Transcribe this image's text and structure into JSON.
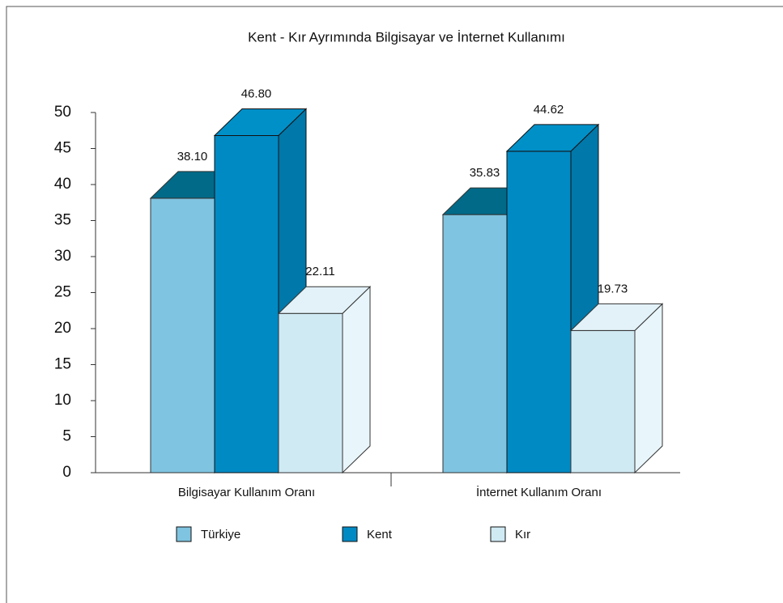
{
  "chart_data": {
    "type": "bar3d",
    "title": "Kent - Kır Ayrımında Bilgisayar ve İnternet Kullanımı",
    "categories": [
      "Bilgisayar Kullanım Oranı",
      "İnternet Kullanım Oranı"
    ],
    "series": [
      {
        "name": "Türkiye",
        "color": "#7fc4e0",
        "values": [
          38.1,
          35.83
        ],
        "value_labels": [
          "38.10",
          "35.83"
        ]
      },
      {
        "name": "Kent",
        "color": "#008ac4",
        "values": [
          46.8,
          44.62
        ],
        "value_labels": [
          "46.80",
          "44.62"
        ]
      },
      {
        "name": "Kır",
        "color": "#d0eaf4",
        "values": [
          22.11,
          19.73
        ],
        "value_labels": [
          "22.11",
          "19.73"
        ]
      }
    ],
    "ylim": [
      0,
      50
    ],
    "yticks": [
      0,
      5,
      10,
      15,
      20,
      25,
      30,
      35,
      40,
      45,
      50
    ],
    "legend": "bottom"
  }
}
